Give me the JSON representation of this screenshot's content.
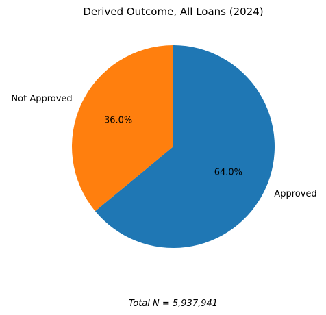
{
  "chart_data": {
    "type": "pie",
    "title": "Derived Outcome, All Loans (2024)",
    "slices": [
      {
        "label": "Approved",
        "value": 64.0,
        "pct_label": "64.0%",
        "color": "#1f77b4"
      },
      {
        "label": "Not Approved",
        "value": 36.0,
        "pct_label": "36.0%",
        "color": "#ff7f0e"
      }
    ],
    "start_angle_deg": 90,
    "direction": "clockwise",
    "footnote": "Total N = 5,937,941"
  }
}
